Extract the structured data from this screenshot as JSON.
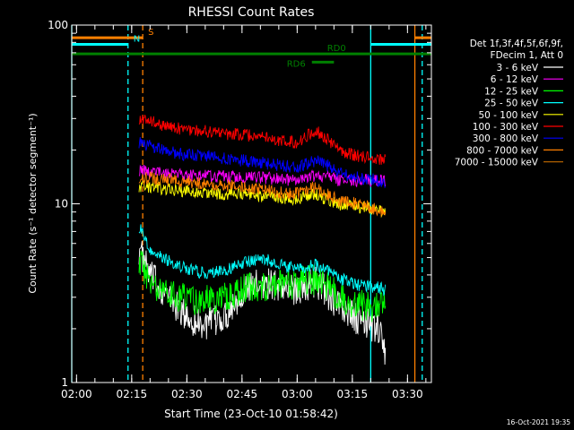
{
  "chart_data": {
    "type": "line",
    "title": "RHESSI Count Rates",
    "xlabel": "Start Time (23-Oct-10 01:58:42)",
    "ylabel": "Count Rate (s⁻¹ detector segment⁻¹)",
    "y_scale": "log",
    "ylim": [
      1,
      100
    ],
    "xlim": [
      "01:58:42",
      "03:36:30"
    ],
    "x_ticks": [
      "02:00",
      "02:15",
      "02:30",
      "02:45",
      "03:00",
      "03:15",
      "03:30"
    ],
    "y_ticks": [
      "1",
      "10",
      "100"
    ],
    "grid": false,
    "legend_position": "right",
    "legend_header": [
      "Det 1f,3f,4f,5f,6f,9f,",
      "FDecim 1, Att 0"
    ],
    "footer_date": "16-Oct-2021 19:35",
    "series": [
      {
        "name": "3 - 6 keV",
        "color": "#ffffff",
        "points": [
          [
            "02:17",
            5.6
          ],
          [
            "02:20",
            4.0
          ],
          [
            "02:25",
            3.0
          ],
          [
            "02:30",
            2.3
          ],
          [
            "02:35",
            2.1
          ],
          [
            "02:40",
            2.3
          ],
          [
            "02:45",
            3.2
          ],
          [
            "02:50",
            3.6
          ],
          [
            "02:55",
            3.5
          ],
          [
            "03:00",
            3.3
          ],
          [
            "03:05",
            3.7
          ],
          [
            "03:08",
            3.2
          ],
          [
            "03:12",
            2.6
          ],
          [
            "03:17",
            2.2
          ],
          [
            "03:22",
            2.0
          ],
          [
            "03:24",
            1.5
          ]
        ]
      },
      {
        "name": "6 - 12 keV",
        "color": "#ff00ff",
        "points": [
          [
            "02:17",
            15.5
          ],
          [
            "02:20",
            15.0
          ],
          [
            "02:25",
            15.0
          ],
          [
            "02:30",
            14.5
          ],
          [
            "02:35",
            14.3
          ],
          [
            "02:40",
            14.2
          ],
          [
            "02:45",
            14.0
          ],
          [
            "02:50",
            14.0
          ],
          [
            "02:55",
            13.8
          ],
          [
            "03:00",
            13.5
          ],
          [
            "03:05",
            14.5
          ],
          [
            "03:08",
            14.0
          ],
          [
            "03:12",
            13.5
          ],
          [
            "03:17",
            13.5
          ],
          [
            "03:22",
            13.5
          ],
          [
            "03:24",
            13.5
          ]
        ]
      },
      {
        "name": "12 - 25 keV",
        "color": "#00ff00",
        "points": [
          [
            "02:17",
            5.0
          ],
          [
            "02:20",
            3.5
          ],
          [
            "02:25",
            3.2
          ],
          [
            "02:30",
            2.9
          ],
          [
            "02:35",
            2.9
          ],
          [
            "02:40",
            3.0
          ],
          [
            "02:45",
            3.3
          ],
          [
            "02:50",
            3.5
          ],
          [
            "02:55",
            3.5
          ],
          [
            "03:00",
            3.6
          ],
          [
            "03:05",
            3.8
          ],
          [
            "03:08",
            3.4
          ],
          [
            "03:12",
            3.0
          ],
          [
            "03:17",
            2.7
          ],
          [
            "03:22",
            2.6
          ],
          [
            "03:24",
            2.7
          ]
        ]
      },
      {
        "name": "25 - 50 keV",
        "color": "#00ffff",
        "points": [
          [
            "02:17",
            7.5
          ],
          [
            "02:20",
            5.5
          ],
          [
            "02:25",
            4.8
          ],
          [
            "02:30",
            4.3
          ],
          [
            "02:35",
            4.1
          ],
          [
            "02:40",
            4.2
          ],
          [
            "02:45",
            4.6
          ],
          [
            "02:50",
            5.0
          ],
          [
            "02:55",
            4.6
          ],
          [
            "03:00",
            4.3
          ],
          [
            "03:05",
            4.6
          ],
          [
            "03:08",
            4.2
          ],
          [
            "03:12",
            3.8
          ],
          [
            "03:17",
            3.5
          ],
          [
            "03:22",
            3.4
          ],
          [
            "03:24",
            3.3
          ]
        ]
      },
      {
        "name": "50 - 100 keV",
        "color": "#ffff00",
        "points": [
          [
            "02:17",
            12.5
          ],
          [
            "02:20",
            12.5
          ],
          [
            "02:25",
            12.0
          ],
          [
            "02:30",
            11.8
          ],
          [
            "02:35",
            11.5
          ],
          [
            "02:40",
            11.3
          ],
          [
            "02:45",
            11.5
          ],
          [
            "02:50",
            11.0
          ],
          [
            "02:55",
            10.8
          ],
          [
            "03:00",
            10.6
          ],
          [
            "03:05",
            11.5
          ],
          [
            "03:08",
            10.5
          ],
          [
            "03:12",
            9.9
          ],
          [
            "03:17",
            9.6
          ],
          [
            "03:22",
            9.3
          ],
          [
            "03:24",
            9.0
          ]
        ]
      },
      {
        "name": "100 - 300 keV",
        "color": "#ff0000",
        "points": [
          [
            "02:17",
            30.0
          ],
          [
            "02:20",
            29.0
          ],
          [
            "02:25",
            27.0
          ],
          [
            "02:30",
            26.0
          ],
          [
            "02:35",
            25.5
          ],
          [
            "02:40",
            24.5
          ],
          [
            "02:45",
            24.5
          ],
          [
            "02:50",
            23.5
          ],
          [
            "02:55",
            22.5
          ],
          [
            "03:00",
            22.0
          ],
          [
            "03:05",
            26.0
          ],
          [
            "03:08",
            23.0
          ],
          [
            "03:12",
            19.5
          ],
          [
            "03:17",
            18.5
          ],
          [
            "03:22",
            18.0
          ],
          [
            "03:24",
            17.5
          ]
        ]
      },
      {
        "name": "300 - 800 keV",
        "color": "#0000ff",
        "points": [
          [
            "02:17",
            22.0
          ],
          [
            "02:20",
            21.0
          ],
          [
            "02:25",
            19.5
          ],
          [
            "02:30",
            18.8
          ],
          [
            "02:35",
            18.5
          ],
          [
            "02:40",
            18.0
          ],
          [
            "02:45",
            17.5
          ],
          [
            "02:50",
            17.0
          ],
          [
            "02:55",
            16.5
          ],
          [
            "03:00",
            16.0
          ],
          [
            "03:05",
            17.5
          ],
          [
            "03:08",
            16.5
          ],
          [
            "03:12",
            14.8
          ],
          [
            "03:17",
            14.0
          ],
          [
            "03:22",
            13.5
          ],
          [
            "03:24",
            13.0
          ]
        ]
      },
      {
        "name": "800 - 7000 keV",
        "color": "#ff8000",
        "points": [
          [
            "02:17",
            14.0
          ],
          [
            "02:20",
            14.0
          ],
          [
            "02:25",
            13.6
          ],
          [
            "02:30",
            13.3
          ],
          [
            "02:35",
            13.0
          ],
          [
            "02:40",
            12.6
          ],
          [
            "02:45",
            12.5
          ],
          [
            "02:50",
            12.0
          ],
          [
            "02:55",
            11.6
          ],
          [
            "03:00",
            11.4
          ],
          [
            "03:05",
            12.5
          ],
          [
            "03:08",
            11.3
          ],
          [
            "03:12",
            10.3
          ],
          [
            "03:17",
            10.0
          ],
          [
            "03:22",
            9.2
          ],
          [
            "03:24",
            8.8
          ]
        ]
      },
      {
        "name": "7000 - 15000 keV",
        "color": "#b06000",
        "points": []
      }
    ],
    "annotations": [
      {
        "label": "S",
        "color": "#ff8000",
        "segments": [
          [
            "01:58:42",
            "02:18"
          ],
          [
            "03:32",
            "03:36:30"
          ]
        ],
        "y": 85
      },
      {
        "label": "N",
        "color": "#00ffff",
        "segments": [
          [
            "01:58:42",
            "02:14"
          ],
          [
            "03:20",
            "03:36:30"
          ]
        ],
        "y": 78
      },
      {
        "label": "RD0",
        "color": "#008000",
        "segments": [
          [
            "01:58:42",
            "03:36:30"
          ]
        ],
        "y": 69
      },
      {
        "label": "RD6",
        "color": "#008000",
        "segments": [
          [
            "03:04",
            "03:10"
          ]
        ],
        "y": 62
      }
    ],
    "vertical_markers": [
      {
        "time": "01:58:42",
        "color": "#00ffff",
        "style": "solid"
      },
      {
        "time": "02:14",
        "color": "#00ffff",
        "style": "dashed"
      },
      {
        "time": "02:18",
        "color": "#ff8000",
        "style": "dashed"
      },
      {
        "time": "03:20",
        "color": "#00ffff",
        "style": "solid"
      },
      {
        "time": "03:32",
        "color": "#ff8000",
        "style": "solid"
      },
      {
        "time": "03:34",
        "color": "#00ffff",
        "style": "dashed"
      }
    ]
  }
}
